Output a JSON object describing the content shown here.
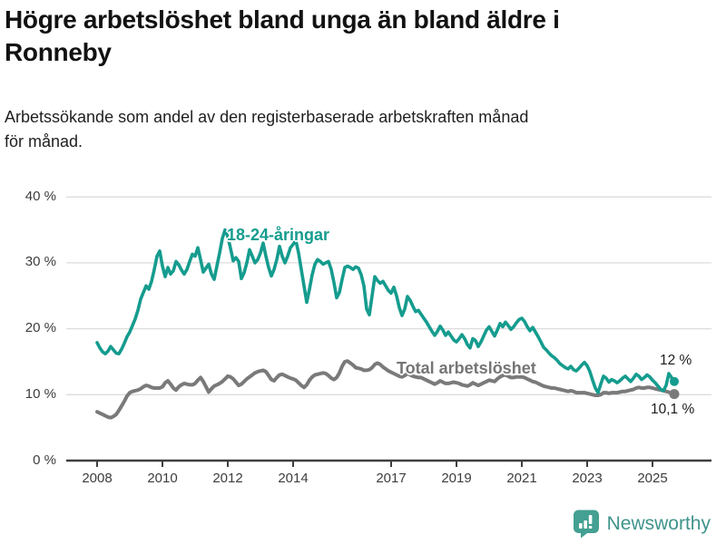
{
  "header": {
    "title": "Högre arbetslöshet bland unga än bland äldre i\nRonneby",
    "subtitle": "Arbetssökande som andel av den registerbaserade arbetskraften månad\nför månad."
  },
  "chart_data": {
    "type": "line",
    "title": "Högre arbetslöshet bland unga än bland äldre i Ronneby",
    "subtitle": "Arbetssökande som andel av den registerbaserade arbetskraften månad för månad.",
    "unit": "%",
    "frequency": "monthly",
    "x_start": "2008-01",
    "x_end": "2025-09",
    "ylim": [
      0,
      40
    ],
    "grid": "horizontal",
    "y_tick_labels": [
      "40 %",
      "30 %",
      "20 %",
      "10 %",
      "0 %"
    ],
    "x_tick_labels": [
      "2008",
      "2010",
      "2012",
      "2014",
      "2017",
      "2019",
      "2021",
      "2023",
      "2025"
    ],
    "legend_position": "inline-annotations",
    "series": [
      {
        "id": "total",
        "name": "Total arbetslöshet",
        "color": "#7a7a7a",
        "end_label": "10,1 %",
        "end_value": 10.1,
        "values": [
          7.4,
          7.2,
          7.0,
          6.8,
          6.6,
          6.5,
          6.7,
          7.0,
          7.6,
          8.3,
          9.0,
          9.8,
          10.3,
          10.5,
          10.6,
          10.7,
          10.9,
          11.2,
          11.4,
          11.3,
          11.1,
          11.0,
          11.0,
          11.0,
          11.2,
          11.8,
          12.1,
          11.6,
          11.0,
          10.7,
          11.2,
          11.5,
          11.7,
          11.6,
          11.5,
          11.5,
          11.7,
          12.2,
          12.6,
          12.0,
          11.2,
          10.4,
          10.9,
          11.3,
          11.5,
          11.7,
          12.0,
          12.4,
          12.8,
          12.7,
          12.4,
          11.9,
          11.4,
          11.6,
          12.0,
          12.4,
          12.7,
          13.0,
          13.3,
          13.5,
          13.6,
          13.7,
          13.5,
          12.9,
          12.3,
          12.1,
          12.6,
          13.0,
          13.1,
          12.9,
          12.7,
          12.5,
          12.4,
          12.2,
          11.8,
          11.4,
          11.1,
          11.5,
          12.2,
          12.7,
          13.0,
          13.1,
          13.2,
          13.3,
          13.2,
          12.9,
          12.5,
          12.3,
          12.6,
          13.3,
          14.3,
          15.0,
          15.1,
          14.8,
          14.5,
          14.1,
          14.0,
          13.9,
          13.7,
          13.7,
          13.8,
          14.1,
          14.6,
          14.8,
          14.6,
          14.2,
          13.9,
          13.6,
          13.4,
          13.2,
          13.0,
          12.8,
          12.7,
          12.9,
          13.2,
          13.0,
          12.8,
          12.7,
          12.6,
          12.6,
          12.4,
          12.2,
          12.0,
          11.8,
          11.6,
          11.8,
          12.1,
          11.9,
          11.7,
          11.7,
          11.8,
          11.9,
          11.8,
          11.7,
          11.5,
          11.4,
          11.3,
          11.5,
          11.8,
          11.6,
          11.4,
          11.6,
          11.8,
          12.0,
          12.2,
          12.1,
          12.0,
          12.4,
          12.7,
          12.9,
          13.0,
          12.8,
          12.6,
          12.6,
          12.7,
          12.7,
          12.7,
          12.6,
          12.4,
          12.2,
          12.0,
          11.9,
          11.7,
          11.5,
          11.3,
          11.2,
          11.1,
          11.0,
          11.0,
          10.9,
          10.8,
          10.7,
          10.6,
          10.5,
          10.6,
          10.5,
          10.3,
          10.3,
          10.3,
          10.3,
          10.2,
          10.1,
          10.0,
          9.9,
          9.9,
          10.0,
          10.3,
          10.3,
          10.2,
          10.3,
          10.3,
          10.3,
          10.4,
          10.5,
          10.5,
          10.6,
          10.7,
          10.8,
          11.0,
          11.1,
          11.0,
          11.0,
          11.1,
          11.1,
          11.0,
          10.9,
          10.8,
          10.7,
          10.6,
          10.5,
          10.4,
          10.2,
          10.1
        ]
      },
      {
        "id": "young",
        "name": "18-24-åringar",
        "color": "#159c8e",
        "end_label": "12 %",
        "end_value": 12.0,
        "values": [
          17.9,
          17.1,
          16.5,
          16.2,
          16.6,
          17.3,
          16.8,
          16.3,
          16.2,
          16.9,
          17.8,
          18.8,
          19.5,
          20.5,
          21.5,
          22.8,
          24.5,
          25.5,
          26.5,
          26.0,
          27.2,
          29.0,
          31.0,
          31.8,
          29.5,
          27.9,
          29.3,
          28.3,
          28.8,
          30.2,
          29.7,
          28.9,
          28.3,
          29.0,
          30.2,
          31.3,
          31.0,
          32.3,
          30.5,
          28.6,
          29.2,
          29.8,
          28.3,
          27.5,
          29.5,
          31.5,
          33.7,
          35.0,
          34.0,
          32.2,
          30.3,
          30.8,
          30.2,
          27.6,
          28.5,
          30.0,
          32.0,
          31.0,
          30.0,
          30.5,
          31.5,
          33.0,
          31.0,
          29.3,
          28.0,
          29.0,
          30.5,
          32.5,
          31.0,
          30.0,
          31.0,
          32.3,
          32.8,
          33.4,
          31.5,
          29.0,
          26.5,
          24.0,
          26.0,
          28.2,
          29.8,
          30.5,
          30.2,
          29.8,
          30.0,
          30.2,
          29.0,
          27.0,
          24.7,
          25.5,
          27.5,
          29.3,
          29.5,
          29.3,
          29.0,
          29.4,
          29.2,
          28.2,
          26.5,
          23.0,
          22.1,
          25.0,
          27.9,
          27.3,
          26.9,
          27.2,
          26.5,
          25.8,
          25.4,
          26.3,
          25.0,
          23.2,
          22.0,
          23.0,
          24.9,
          24.3,
          23.4,
          22.6,
          22.8,
          22.2,
          21.6,
          21.0,
          20.3,
          19.6,
          19.0,
          19.6,
          20.4,
          19.8,
          19.0,
          19.5,
          18.9,
          18.3,
          18.0,
          18.5,
          19.1,
          18.5,
          17.6,
          17.1,
          18.5,
          18.2,
          17.3,
          18.0,
          18.9,
          19.8,
          20.3,
          19.6,
          18.9,
          19.8,
          20.8,
          20.3,
          21.0,
          20.5,
          19.9,
          20.3,
          20.9,
          21.4,
          21.6,
          21.1,
          20.3,
          19.7,
          20.2,
          19.5,
          18.8,
          18.0,
          17.2,
          16.8,
          16.3,
          15.9,
          15.6,
          15.2,
          14.7,
          14.4,
          14.1,
          13.9,
          14.3,
          13.8,
          13.6,
          14.0,
          14.5,
          14.9,
          14.4,
          13.5,
          12.2,
          11.0,
          10.3,
          11.6,
          12.8,
          12.5,
          11.9,
          12.3,
          12.1,
          11.8,
          12.1,
          12.5,
          12.8,
          12.4,
          12.0,
          12.5,
          13.1,
          12.8,
          12.3,
          12.6,
          13.0,
          12.7,
          12.2,
          11.8,
          11.3,
          10.8,
          10.6,
          11.4,
          13.2,
          12.6,
          12.0
        ]
      }
    ]
  },
  "footer": {
    "brand": "Newsworthy"
  }
}
